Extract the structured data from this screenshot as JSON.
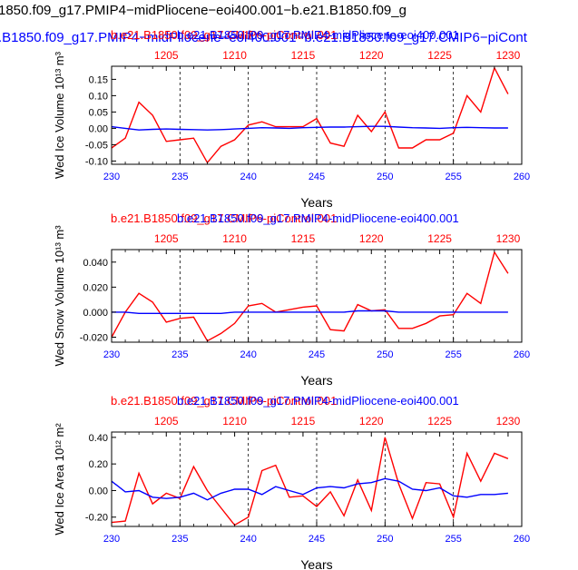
{
  "header": {
    "title_line1": "1850.f09_g17.PMIP4−midPliocene−eoi400.001−b.e21.B1850.f09_g",
    "title_line2": ".B1850.f09_g17.PMIP4−midPliocene−eoi400.001−b.e21.B1850.f09_g17.CMIP6−piCont"
  },
  "colors": {
    "red": "#ff0000",
    "blue": "#0000ff",
    "axis": "#000000"
  },
  "chart_data": [
    {
      "type": "line",
      "ylabel": "Wed Ice Volume 10¹³ m³",
      "xlabel": "Years",
      "top_label_red": "b.e21.B1850.f09_g17.CMIP6-piControl.001",
      "top_label_blue": "b.e21.B1850.f09_g17.PMIP4-midPliocene-eoi400.001",
      "xlim": [
        230,
        260
      ],
      "x_ticks": [
        230,
        235,
        240,
        245,
        250,
        255,
        260
      ],
      "top_xlim": [
        1201,
        1231
      ],
      "top_ticks": [
        1205,
        1210,
        1215,
        1220,
        1225,
        1230
      ],
      "ylim": [
        -0.11,
        0.19
      ],
      "y_ticks": [
        0.15,
        0.1,
        0.05,
        0.0,
        -0.05,
        -0.1
      ],
      "y_tick_labels": [
        "0.15",
        "0.10",
        "0.05",
        "0.00",
        "-0.05",
        "-0.10"
      ],
      "grid": "vertical dashed at x ticks",
      "series": [
        {
          "color": "red",
          "x": [
            230,
            231,
            232,
            233,
            234,
            235,
            236,
            237,
            238,
            239,
            240,
            241,
            242,
            243,
            244,
            245,
            246,
            247,
            248,
            249,
            250,
            251,
            252,
            253,
            254,
            255,
            256,
            257,
            258,
            259
          ],
          "values": [
            -0.06,
            -0.03,
            0.08,
            0.04,
            -0.04,
            -0.035,
            -0.03,
            -0.105,
            -0.055,
            -0.035,
            0.01,
            0.02,
            0.005,
            0.005,
            0.005,
            0.03,
            -0.045,
            -0.055,
            0.04,
            -0.01,
            0.05,
            -0.06,
            -0.06,
            -0.035,
            -0.035,
            -0.015,
            0.1,
            0.05,
            0.185,
            0.105
          ]
        },
        {
          "color": "blue",
          "x": [
            230,
            231,
            232,
            233,
            234,
            235,
            236,
            237,
            238,
            239,
            240,
            241,
            242,
            243,
            244,
            245,
            246,
            247,
            248,
            249,
            250,
            251,
            252,
            253,
            254,
            255,
            256,
            257,
            258,
            259
          ],
          "values": [
            0.005,
            0.0,
            -0.005,
            -0.003,
            -0.002,
            -0.003,
            -0.004,
            -0.005,
            -0.004,
            -0.002,
            0.0,
            0.002,
            0.001,
            0.0,
            0.002,
            0.003,
            0.004,
            0.004,
            0.005,
            0.006,
            0.006,
            0.004,
            0.002,
            0.001,
            0.0,
            0.002,
            0.003,
            0.002,
            0.001,
            0.001
          ]
        }
      ]
    },
    {
      "type": "line",
      "ylabel": "Wed Snow Volume 10¹³ m³",
      "xlabel": "Years",
      "top_label_red": "b.e21.B1850.f09_g17.CMIP6-piControl.001",
      "top_label_blue": "b.e21.B1850.f09_g17.PMIP4-midPliocene-eoi400.001",
      "xlim": [
        230,
        260
      ],
      "x_ticks": [
        230,
        235,
        240,
        245,
        250,
        255,
        260
      ],
      "top_xlim": [
        1201,
        1231
      ],
      "top_ticks": [
        1205,
        1210,
        1215,
        1220,
        1225,
        1230
      ],
      "ylim": [
        -0.024,
        0.05
      ],
      "y_ticks": [
        0.04,
        0.02,
        0.0,
        -0.02
      ],
      "y_tick_labels": [
        "0.040",
        "0.020",
        "0.000",
        "-0.020"
      ],
      "grid": "vertical dashed at x ticks",
      "series": [
        {
          "color": "red",
          "x": [
            230,
            231,
            232,
            233,
            234,
            235,
            236,
            237,
            238,
            239,
            240,
            241,
            242,
            243,
            244,
            245,
            246,
            247,
            248,
            249,
            250,
            251,
            252,
            253,
            254,
            255,
            256,
            257,
            258,
            259
          ],
          "values": [
            -0.02,
            0.0,
            0.015,
            0.008,
            -0.008,
            -0.005,
            -0.004,
            -0.023,
            -0.017,
            -0.009,
            0.005,
            0.007,
            0.0,
            0.002,
            0.004,
            0.005,
            -0.014,
            -0.015,
            0.006,
            0.001,
            0.002,
            -0.013,
            -0.013,
            -0.009,
            -0.003,
            -0.002,
            0.015,
            0.007,
            0.048,
            0.031
          ]
        },
        {
          "color": "blue",
          "x": [
            230,
            231,
            232,
            233,
            234,
            235,
            236,
            237,
            238,
            239,
            240,
            241,
            242,
            243,
            244,
            245,
            246,
            247,
            248,
            249,
            250,
            251,
            252,
            253,
            254,
            255,
            256,
            257,
            258,
            259
          ],
          "values": [
            0.0,
            0.0,
            -0.001,
            -0.001,
            -0.001,
            -0.001,
            -0.001,
            -0.001,
            -0.001,
            0.0,
            0.0,
            0.0,
            0.0,
            0.0,
            0.0,
            0.0,
            0.0,
            0.0,
            0.001,
            0.001,
            0.001,
            0.0,
            0.0,
            0.0,
            0.0,
            0.0,
            0.0,
            0.0,
            0.0,
            0.0
          ]
        }
      ]
    },
    {
      "type": "line",
      "ylabel": "Wed Ice Area 10¹² m²",
      "xlabel": "Years",
      "top_label_red": "b.e21.B1850.f09_g17.CMIP6-piControl.001",
      "top_label_blue": "b.e21.B1850.f09_g17.PMIP4-midPliocene-eoi400.001",
      "xlim": [
        230,
        260
      ],
      "x_ticks": [
        230,
        235,
        240,
        245,
        250,
        255,
        260
      ],
      "top_xlim": [
        1201,
        1231
      ],
      "top_ticks": [
        1205,
        1210,
        1215,
        1220,
        1225,
        1230
      ],
      "ylim": [
        -0.27,
        0.44
      ],
      "y_ticks": [
        0.4,
        0.2,
        0.0,
        -0.2
      ],
      "y_tick_labels": [
        "0.40",
        "0.20",
        "0.00",
        "-0.20"
      ],
      "grid": "vertical dashed at x ticks",
      "series": [
        {
          "color": "red",
          "x": [
            230,
            231,
            232,
            233,
            234,
            235,
            236,
            237,
            238,
            239,
            240,
            241,
            242,
            243,
            244,
            245,
            246,
            247,
            248,
            249,
            250,
            251,
            252,
            253,
            254,
            255,
            256,
            257,
            258,
            259
          ],
          "values": [
            -0.24,
            -0.23,
            0.13,
            -0.1,
            -0.02,
            -0.06,
            0.18,
            0.0,
            -0.13,
            -0.26,
            -0.2,
            0.15,
            0.19,
            -0.05,
            -0.04,
            -0.12,
            -0.01,
            -0.19,
            0.08,
            -0.15,
            0.4,
            0.05,
            -0.21,
            0.06,
            0.05,
            -0.2,
            0.28,
            0.07,
            0.28,
            0.24
          ]
        },
        {
          "color": "blue",
          "x": [
            230,
            231,
            232,
            233,
            234,
            235,
            236,
            237,
            238,
            239,
            240,
            241,
            242,
            243,
            244,
            245,
            246,
            247,
            248,
            249,
            250,
            251,
            252,
            253,
            254,
            255,
            256,
            257,
            258,
            259
          ],
          "values": [
            0.07,
            -0.01,
            0.0,
            -0.05,
            -0.06,
            -0.05,
            -0.02,
            -0.07,
            -0.02,
            0.01,
            0.01,
            -0.03,
            0.03,
            0.0,
            -0.03,
            0.02,
            0.03,
            0.02,
            0.05,
            0.06,
            0.09,
            0.07,
            0.01,
            0.0,
            0.02,
            -0.04,
            -0.05,
            -0.03,
            -0.03,
            -0.02
          ]
        }
      ]
    }
  ]
}
